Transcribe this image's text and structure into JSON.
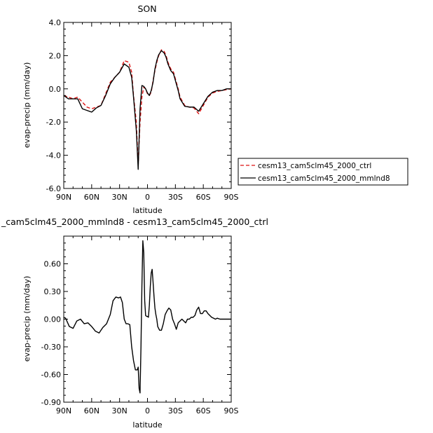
{
  "chart_data": [
    {
      "type": "line",
      "title": "SON",
      "xlabel": "latitude",
      "ylabel": "evap-precip (mm/day)",
      "xlim": [
        90,
        -90
      ],
      "ylim": [
        -6.0,
        4.0
      ],
      "x_tick_values": [
        90,
        60,
        30,
        0,
        -30,
        -60,
        -90
      ],
      "x_tick_labels": [
        "90N",
        "60N",
        "30N",
        "0",
        "30S",
        "60S",
        "90S"
      ],
      "y_ticks": [
        -6.0,
        -4.0,
        -2.0,
        0.0,
        2.0,
        4.0
      ],
      "y_tick_labels": [
        "-6.0",
        "-4.0",
        "-2.0",
        "0.0",
        "2.0",
        "4.0"
      ],
      "legend_position": "right",
      "series": [
        {
          "name": "cesm13_cam5clm45_2000_ctrl",
          "color": "#dd1111",
          "dash": "dashed",
          "x": [
            90,
            85,
            80,
            75,
            70,
            65,
            60,
            55,
            50,
            45,
            40,
            35,
            30,
            25,
            20,
            17,
            15,
            12,
            10,
            8,
            6,
            4,
            2,
            0,
            -2,
            -4,
            -6,
            -8,
            -10,
            -12,
            -15,
            -18,
            -20,
            -22,
            -25,
            -28,
            -30,
            -33,
            -35,
            -40,
            -45,
            -50,
            -55,
            -60,
            -65,
            -70,
            -75,
            -80,
            -85,
            -90
          ],
          "y": [
            -0.4,
            -0.5,
            -0.6,
            -0.5,
            -0.8,
            -1.1,
            -1.2,
            -1.1,
            -1.0,
            -0.3,
            0.4,
            0.7,
            1.0,
            1.7,
            1.6,
            1.0,
            -0.4,
            -2.0,
            -4.6,
            -2.0,
            -0.5,
            0.1,
            0.0,
            -0.3,
            -0.4,
            -0.2,
            0.5,
            1.1,
            1.6,
            2.0,
            2.35,
            2.25,
            2.0,
            1.6,
            1.2,
            1.0,
            0.6,
            0.0,
            -0.5,
            -1.0,
            -1.1,
            -1.15,
            -1.5,
            -1.0,
            -0.5,
            -0.25,
            -0.15,
            -0.1,
            -0.05,
            0.0
          ]
        },
        {
          "name": "cesm13_cam5clm45_2000_mmlnd8",
          "color": "#000000",
          "dash": "solid",
          "x": [
            90,
            85,
            80,
            75,
            70,
            65,
            60,
            55,
            50,
            45,
            40,
            35,
            30,
            25,
            20,
            17,
            15,
            12,
            10,
            8,
            6,
            4,
            2,
            0,
            -2,
            -4,
            -6,
            -8,
            -10,
            -12,
            -15,
            -18,
            -20,
            -22,
            -25,
            -28,
            -30,
            -33,
            -35,
            -40,
            -45,
            -50,
            -55,
            -60,
            -65,
            -70,
            -75,
            -80,
            -85,
            -90
          ],
          "y": [
            -0.4,
            -0.6,
            -0.6,
            -0.6,
            -1.2,
            -1.3,
            -1.4,
            -1.15,
            -1.0,
            -0.4,
            0.3,
            0.7,
            1.0,
            1.5,
            1.3,
            0.7,
            -0.5,
            -2.5,
            -4.85,
            -1.2,
            0.2,
            0.15,
            0.0,
            -0.25,
            -0.4,
            -0.1,
            0.4,
            1.2,
            1.7,
            2.05,
            2.3,
            2.15,
            1.9,
            1.5,
            1.1,
            0.9,
            0.5,
            -0.1,
            -0.6,
            -1.05,
            -1.1,
            -1.1,
            -1.35,
            -0.9,
            -0.45,
            -0.2,
            -0.1,
            -0.1,
            0.0,
            0.0
          ]
        }
      ]
    },
    {
      "type": "line",
      "title": "_cam5clm45_2000_mmlnd8 - cesm13_cam5clm45_2000_ctrl",
      "xlabel": "latitude",
      "ylabel": "evap-precip (mm/day)",
      "xlim": [
        90,
        -90
      ],
      "ylim": [
        -0.9,
        0.9
      ],
      "x_tick_values": [
        90,
        60,
        30,
        0,
        -30,
        -60,
        -90
      ],
      "x_tick_labels": [
        "90N",
        "60N",
        "30N",
        "0",
        "30S",
        "60S",
        "90S"
      ],
      "y_ticks": [
        -0.9,
        -0.6,
        -0.3,
        0.0,
        0.3,
        0.6
      ],
      "y_tick_labels": [
        "-0.90",
        "-0.60",
        "-0.30",
        "0.00",
        "0.30",
        "0.60"
      ],
      "series": [
        {
          "name": "",
          "color": "#000000",
          "dash": "solid",
          "x": [
            90,
            88,
            84,
            80,
            76,
            72,
            68,
            64,
            60,
            56,
            52,
            48,
            44,
            40,
            37,
            34,
            31,
            29,
            27,
            25,
            23,
            21,
            19,
            17,
            15,
            13,
            11,
            10,
            9,
            8,
            7,
            6,
            5,
            4,
            3,
            2,
            1,
            0,
            -1,
            -2,
            -3,
            -4,
            -5,
            -6,
            -7,
            -8,
            -9,
            -10,
            -11,
            -13,
            -15,
            -17,
            -19,
            -21,
            -23,
            -25,
            -27,
            -29,
            -31,
            -33,
            -35,
            -37,
            -39,
            -41,
            -43,
            -45,
            -47,
            -49,
            -51,
            -53,
            -55,
            -57,
            -59,
            -61,
            -63,
            -65,
            -67,
            -69,
            -71,
            -73,
            -75,
            -78,
            -82,
            -86,
            -90
          ],
          "y": [
            0.02,
            0.01,
            -0.08,
            -0.1,
            -0.02,
            0.0,
            -0.05,
            -0.04,
            -0.08,
            -0.13,
            -0.15,
            -0.09,
            -0.05,
            0.05,
            0.2,
            0.24,
            0.23,
            0.24,
            0.18,
            0.0,
            -0.05,
            -0.05,
            -0.06,
            -0.3,
            -0.45,
            -0.55,
            -0.55,
            -0.52,
            -0.75,
            -0.8,
            -0.3,
            0.35,
            0.85,
            0.72,
            0.2,
            0.04,
            0.03,
            0.03,
            0.02,
            0.15,
            0.35,
            0.5,
            0.54,
            0.4,
            0.25,
            0.12,
            0.05,
            0.0,
            -0.08,
            -0.12,
            -0.12,
            -0.05,
            0.05,
            0.09,
            0.12,
            0.1,
            0.0,
            -0.05,
            -0.11,
            -0.04,
            -0.02,
            0.0,
            -0.02,
            -0.04,
            0.0,
            0.0,
            0.02,
            0.02,
            0.04,
            0.1,
            0.13,
            0.06,
            0.06,
            0.09,
            0.09,
            0.06,
            0.04,
            0.02,
            0.01,
            0.0,
            0.01,
            0.0,
            0.0,
            0.0,
            0.0
          ]
        }
      ]
    }
  ]
}
